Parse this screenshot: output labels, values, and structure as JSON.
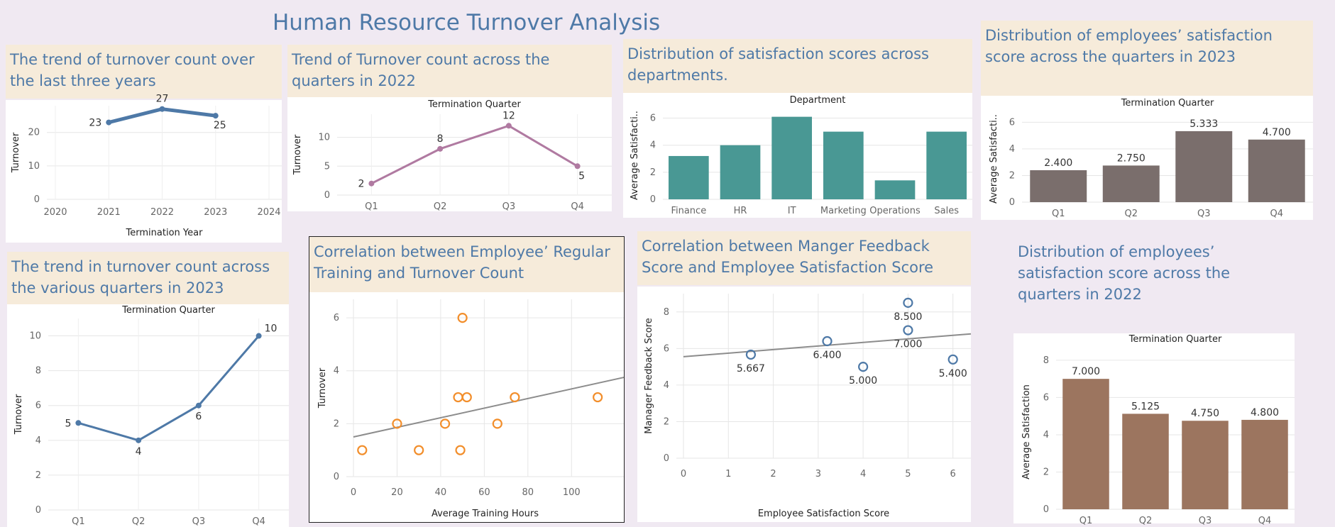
{
  "dashboard": {
    "title": "Human Resource Turnover Analysis"
  },
  "chart_data": [
    {
      "id": "c1",
      "type": "line",
      "title": "The trend of turnover count over the last three years",
      "xlabel": "Termination Year",
      "ylabel": "Turnover",
      "x": [
        2021,
        2022,
        2023
      ],
      "values": [
        23,
        27,
        25
      ],
      "xlim": [
        2020,
        2024
      ],
      "xticks": [
        2020,
        2021,
        2022,
        2023,
        2024
      ],
      "ylim": [
        0,
        28
      ],
      "yticks": [
        0,
        10,
        20
      ],
      "color": "#4e79a7",
      "grid": true
    },
    {
      "id": "c2",
      "type": "line",
      "title": "Trend of Turnover count across the quarters in 2022",
      "header": "Termination Quarter",
      "ylabel": "Turnover",
      "categories": [
        "Q1",
        "Q2",
        "Q3",
        "Q4"
      ],
      "values": [
        2,
        8,
        12,
        5
      ],
      "ylim": [
        0,
        14
      ],
      "yticks": [
        0,
        5,
        10
      ],
      "color": "#b07aa1",
      "grid": true
    },
    {
      "id": "c3",
      "type": "bar",
      "title": "Distribution of satisfaction scores across departments.",
      "header": "Department",
      "ylabel": "Average Satisfacti..",
      "categories": [
        "Finance",
        "HR",
        "IT",
        "Marketing",
        "Operations",
        "Sales"
      ],
      "values": [
        3.2,
        4.0,
        6.1,
        5.0,
        1.4,
        5.0
      ],
      "ylim": [
        0,
        6.5
      ],
      "yticks": [
        0,
        2,
        4,
        6
      ],
      "color": "#499894",
      "grid": true
    },
    {
      "id": "c4",
      "type": "bar",
      "title": "Distribution of  employees’ satisfaction score across the quarters in 2023",
      "header": "Termination Quarter",
      "ylabel": "Average Satisfacti..",
      "categories": [
        "Q1",
        "Q2",
        "Q3",
        "Q4"
      ],
      "values": [
        2.4,
        2.75,
        5.333,
        4.7
      ],
      "labels": [
        "2.400",
        "2.750",
        "5.333",
        "4.700"
      ],
      "ylim": [
        0,
        6.5
      ],
      "yticks": [
        0,
        2,
        4,
        6
      ],
      "color": "#7a6e6c",
      "grid": true
    },
    {
      "id": "c5",
      "type": "line",
      "title": "The trend in turnover count across the various quarters in 2023",
      "header": "Termination Quarter",
      "ylabel": "Turnover",
      "categories": [
        "Q1",
        "Q2",
        "Q3",
        "Q4"
      ],
      "values": [
        5,
        4,
        6,
        10
      ],
      "ylim": [
        0,
        11
      ],
      "yticks": [
        0,
        2,
        4,
        6,
        8,
        10
      ],
      "color": "#4e79a7",
      "grid": true
    },
    {
      "id": "c6",
      "type": "scatter",
      "title": "Correlation between Employee’ Regular Training and Turnover Count",
      "xlabel": "Average Training Hours",
      "ylabel": "Turnover",
      "points": [
        [
          4,
          1
        ],
        [
          20,
          2
        ],
        [
          30,
          1
        ],
        [
          42,
          2
        ],
        [
          48,
          3
        ],
        [
          49,
          1
        ],
        [
          50,
          6
        ],
        [
          52,
          3
        ],
        [
          66,
          2
        ],
        [
          74,
          3
        ],
        [
          112,
          3
        ]
      ],
      "trendline": [
        [
          0,
          1.5
        ],
        [
          124,
          3.75
        ]
      ],
      "xlim": [
        0,
        124
      ],
      "xticks": [
        0,
        20,
        40,
        60,
        80,
        100
      ],
      "ylim": [
        0,
        6.7
      ],
      "yticks": [
        0,
        2,
        4,
        6
      ],
      "color": "#f28e2b",
      "grid": true
    },
    {
      "id": "c7",
      "type": "scatter",
      "title": "Correlation between Manger Feedback Score and Employee Satisfaction Score",
      "xlabel": "Employee Satisfaction Score",
      "ylabel": "Manager Feedback Score",
      "points": [
        [
          1.5,
          5.667
        ],
        [
          3.2,
          6.4
        ],
        [
          4.0,
          5.0
        ],
        [
          5.0,
          8.5
        ],
        [
          5.0,
          7.0
        ],
        [
          6.0,
          5.4
        ]
      ],
      "labels": [
        "5.667",
        "6.400",
        "5.000",
        "8.500",
        "7.000",
        "5.400"
      ],
      "trendline": [
        [
          0,
          5.55
        ],
        [
          6.4,
          6.8
        ]
      ],
      "xlim": [
        0,
        6.4
      ],
      "xticks": [
        0,
        1,
        2,
        3,
        4,
        5,
        6
      ],
      "ylim": [
        0,
        9
      ],
      "yticks": [
        0,
        2,
        4,
        6,
        8
      ],
      "color": "#4e79a7",
      "grid": true
    },
    {
      "id": "c8",
      "type": "bar",
      "title": "Distribution of employees’ satisfaction score across the quarters in 2022",
      "header": "Termination Quarter",
      "ylabel": "Average Satisfaction",
      "categories": [
        "Q1",
        "Q2",
        "Q3",
        "Q4"
      ],
      "values": [
        7.0,
        5.125,
        4.75,
        4.8
      ],
      "labels": [
        "7.000",
        "5.125",
        "4.750",
        "4.800"
      ],
      "ylim": [
        0,
        8.3
      ],
      "yticks": [
        0,
        2,
        4,
        6,
        8
      ],
      "color": "#9c755f",
      "grid": true
    }
  ]
}
